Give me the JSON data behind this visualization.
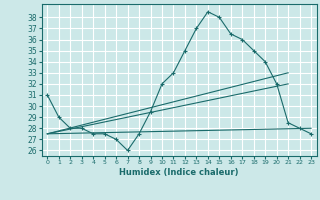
{
  "title": "",
  "xlabel": "Humidex (Indice chaleur)",
  "xlim": [
    -0.5,
    23.5
  ],
  "ylim": [
    25.5,
    39.2
  ],
  "yticks": [
    26,
    27,
    28,
    29,
    30,
    31,
    32,
    33,
    34,
    35,
    36,
    37,
    38
  ],
  "xticks": [
    0,
    1,
    2,
    3,
    4,
    5,
    6,
    7,
    8,
    9,
    10,
    11,
    12,
    13,
    14,
    15,
    16,
    17,
    18,
    19,
    20,
    21,
    22,
    23
  ],
  "bg_color": "#cce8e8",
  "line_color": "#1a6b6b",
  "grid_color": "#ffffff",
  "series0_x": [
    0,
    1,
    2,
    3,
    4,
    5,
    6,
    7,
    8,
    9,
    10,
    11,
    12,
    13,
    14,
    15,
    16,
    17,
    18,
    19,
    20,
    21,
    22,
    23
  ],
  "series0_y": [
    31,
    29,
    28,
    28,
    27.5,
    27.5,
    27,
    26,
    27.5,
    29.5,
    32,
    33,
    35,
    37,
    38.5,
    38,
    36.5,
    36,
    35,
    34,
    32,
    28.5,
    28,
    27.5
  ],
  "series1_x": [
    0,
    23
  ],
  "series1_y": [
    27.5,
    28.0
  ],
  "series2_x": [
    0,
    21
  ],
  "series2_y": [
    27.5,
    33.0
  ],
  "series3_x": [
    0,
    21
  ],
  "series3_y": [
    27.5,
    32.0
  ]
}
